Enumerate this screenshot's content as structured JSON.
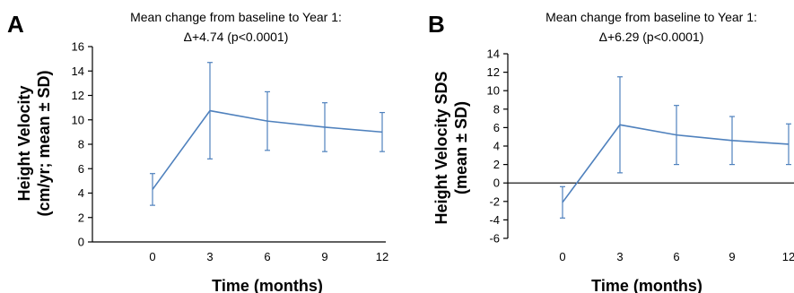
{
  "chart_data": [
    {
      "panel": "A",
      "type": "line",
      "subtitle_line1": "Mean change from baseline to Year 1:",
      "subtitle_line2": "Δ+4.74 (p<0.0001)",
      "xlabel": "Time (months)",
      "ylabel_line1": "Height Velocity",
      "ylabel_line2": "(cm/yr; mean ± SD)",
      "x": [
        0,
        3,
        6,
        9,
        12
      ],
      "xticks": [
        "0",
        "3",
        "6",
        "9",
        "12"
      ],
      "ylim": [
        0,
        16
      ],
      "yticks": [
        "0",
        "2",
        "4",
        "6",
        "8",
        "10",
        "12",
        "14",
        "16"
      ],
      "series": [
        {
          "values": [
            4.3,
            10.75,
            9.9,
            9.4,
            9.0
          ],
          "sd": [
            1.3,
            3.95,
            2.4,
            2.0,
            1.6
          ]
        }
      ],
      "color": "#4f81bd"
    },
    {
      "panel": "B",
      "type": "line",
      "subtitle_line1": "Mean change from baseline to Year 1:",
      "subtitle_line2": "Δ+6.29 (p<0.0001)",
      "xlabel": "Time (months)",
      "ylabel_line1": "Height Velocity SDS",
      "ylabel_line2": "(mean ± SD)",
      "x": [
        0,
        3,
        6,
        9,
        12
      ],
      "xticks": [
        "0",
        "3",
        "6",
        "9",
        "12"
      ],
      "ylim": [
        -6,
        14
      ],
      "yticks": [
        "-6",
        "-4",
        "-2",
        "0",
        "2",
        "4",
        "6",
        "8",
        "10",
        "12",
        "14"
      ],
      "series": [
        {
          "values": [
            -2.1,
            6.3,
            5.2,
            4.6,
            4.2
          ],
          "sd": [
            1.7,
            5.2,
            3.2,
            2.6,
            2.2
          ]
        }
      ],
      "color": "#4f81bd"
    }
  ]
}
